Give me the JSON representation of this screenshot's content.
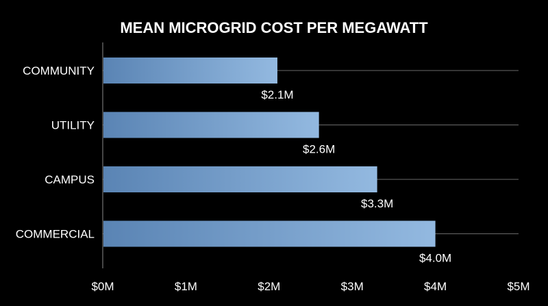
{
  "chart_data": {
    "type": "bar",
    "orientation": "horizontal",
    "title": "MEAN MICROGRID COST PER MEGAWATT",
    "xlabel": "",
    "ylabel": "",
    "categories": [
      "COMMUNITY",
      "UTILITY",
      "CAMPUS",
      "COMMERCIAL"
    ],
    "values": [
      2.1,
      2.6,
      3.3,
      4.0
    ],
    "value_labels": [
      "$2.1M",
      "$2.6M",
      "$3.3M",
      "$4.0M"
    ],
    "xlim": [
      0,
      5
    ],
    "x_ticks": [
      0,
      1,
      2,
      3,
      4,
      5
    ],
    "x_tick_labels": [
      "$0M",
      "$1M",
      "$2M",
      "$3M",
      "$4M",
      "$5M"
    ],
    "grid": "horizontal lines at each category",
    "legend": "none",
    "colors": {
      "background": "#000000",
      "bar_start": "#5a84b4",
      "bar_end": "#93b9e0",
      "text": "#ffffff",
      "axis": "#8a8a8a",
      "grid": "#6a6a6a"
    }
  }
}
